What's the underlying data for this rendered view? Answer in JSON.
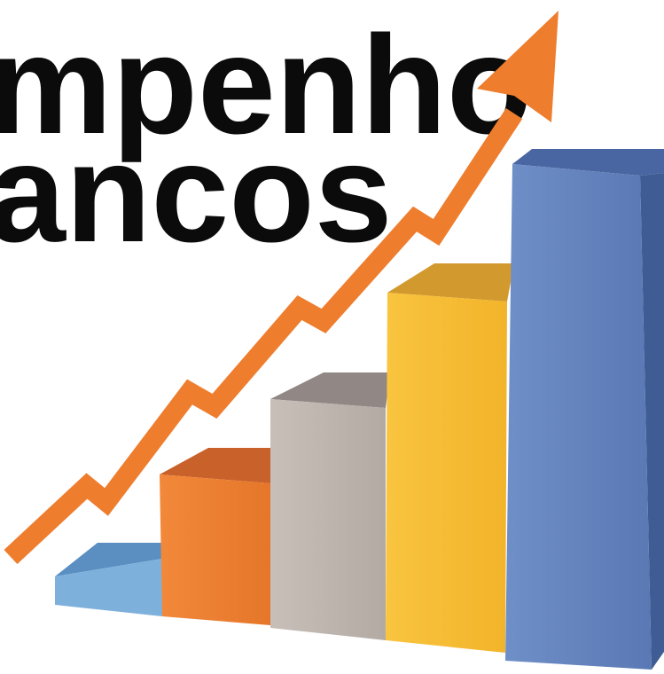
{
  "title": {
    "line1": "mpenho",
    "line2": "ancos"
  }
}
